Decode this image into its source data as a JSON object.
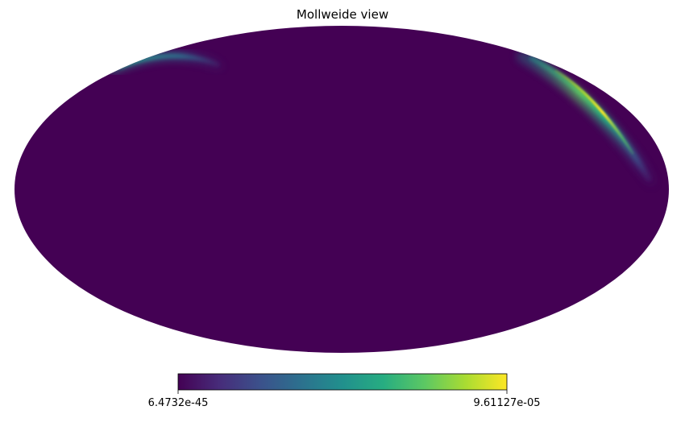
{
  "chart_data": {
    "type": "heatmap",
    "projection": "mollweide",
    "title": "Mollweide view",
    "colormap": "viridis",
    "background_value_color": "#440154",
    "colorbar": {
      "orientation": "horizontal",
      "placement": "bottom",
      "min_label": "6.4732e-45",
      "max_label": "9.61127e-05",
      "min_value": 6.4732e-45,
      "max_value": 9.61127e-05,
      "stops": [
        "#440154",
        "#472c7a",
        "#3b518b",
        "#2c718e",
        "#21908d",
        "#27ad81",
        "#5cc863",
        "#aadc32",
        "#fde725"
      ]
    },
    "features": [
      {
        "description": "bright arc near upper-right limb",
        "peak_fraction_of_max": 1.0,
        "peak_color": "#fde725"
      },
      {
        "description": "faint arc near upper-left limb",
        "peak_fraction_of_max": 0.45,
        "peak_color": "#2c9a8c"
      }
    ],
    "grid": false
  }
}
